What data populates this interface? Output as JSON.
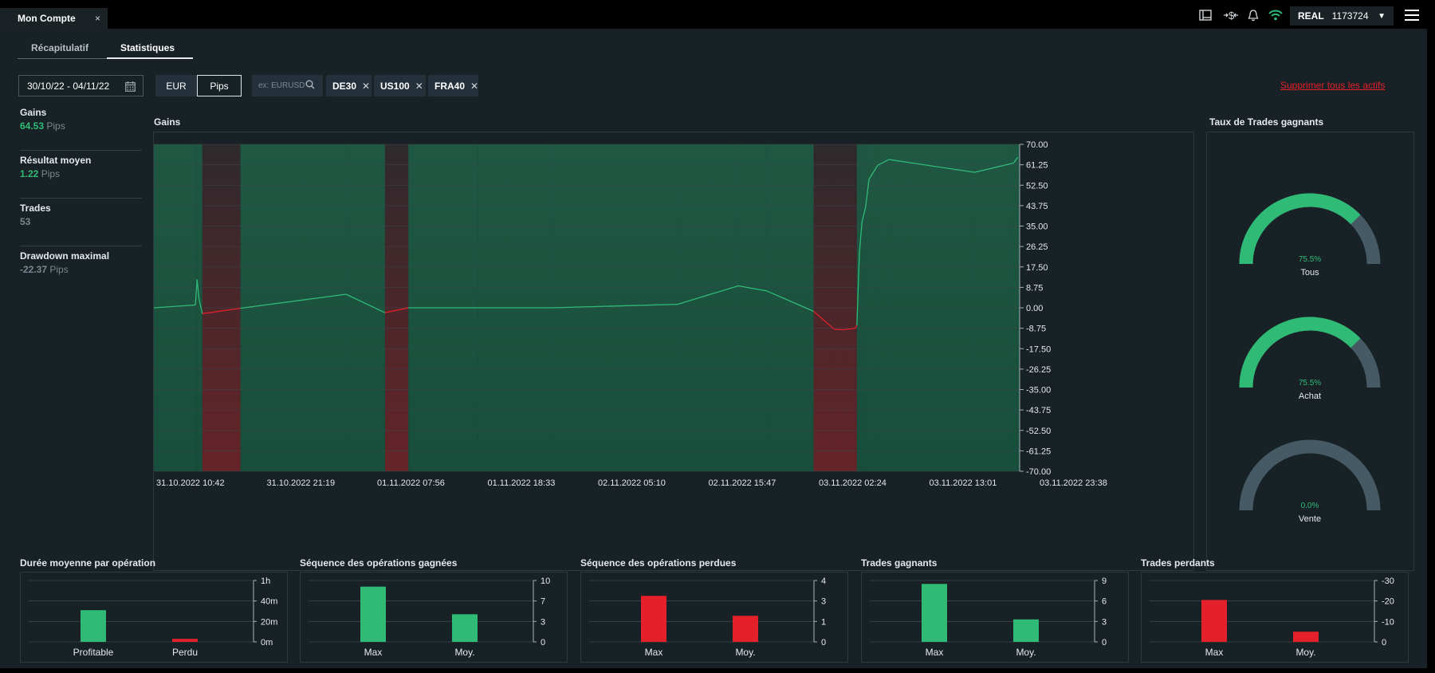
{
  "window": {
    "tab_title": "Mon Compte",
    "close_glyph": "×"
  },
  "topbar": {
    "icons": [
      "layout-icon",
      "dollar-transfer-icon",
      "bell-icon",
      "wifi-icon"
    ],
    "account_type": "REAL",
    "account_number": "1173724"
  },
  "subtabs": [
    {
      "label": "Récapitulatif",
      "active": false
    },
    {
      "label": "Statistiques",
      "active": true
    }
  ],
  "filters": {
    "date_range": "30/10/22 - 04/11/22",
    "currency_toggle": [
      "EUR",
      "Pips"
    ],
    "selected_unit": "Pips",
    "search_placeholder": "ex: EURUSD",
    "instruments": [
      "DE30",
      "US100",
      "FRA40"
    ],
    "remove_all_label": "Supprimer tous les actifs"
  },
  "stats": [
    {
      "label": "Gains",
      "value": "64.53",
      "unit": "Pips",
      "color": "#2fbb76"
    },
    {
      "label": "Résultat moyen",
      "value": "1.22",
      "unit": "Pips",
      "color": "#2fbb76"
    },
    {
      "label": "Trades",
      "value": "53",
      "unit": "",
      "color": "#7b878f"
    },
    {
      "label": "Drawdown maximal",
      "value": "-22.37",
      "unit": "Pips",
      "color": "#7b878f"
    }
  ],
  "sections": {
    "gains_title": "Gains",
    "winrate_title": "Taux de Trades gagnants"
  },
  "colors": {
    "green": "#2fbb76",
    "red": "#e4202a",
    "grey_track": "#455a64",
    "panel": "#182125"
  },
  "chart_data": [
    {
      "type": "area",
      "title": "Gains",
      "ylim": [
        -70,
        70
      ],
      "y_ticks": [
        "70.00",
        "61.25",
        "52.50",
        "43.75",
        "35.00",
        "26.25",
        "17.50",
        "8.75",
        "0.00",
        "-8.75",
        "-17.50",
        "-26.25",
        "-35.00",
        "-43.75",
        "-52.50",
        "-61.25",
        "-70.00"
      ],
      "x_tick_labels": [
        "31.10.2022 10:42",
        "31.10.2022 21:19",
        "01.11.2022 07:56",
        "01.11.2022 18:33",
        "02.11.2022 05:10",
        "02.11.2022 15:47",
        "03.11.2022 02:24",
        "03.11.2022 13:01",
        "03.11.2022 23:38"
      ],
      "x_range": [
        0,
        1000
      ],
      "series": [
        {
          "x": [
            0,
            48,
            50,
            52,
            56,
            100,
            222,
            267,
            294,
            374,
            460,
            605,
            675,
            708,
            762,
            786,
            796,
            810,
            812,
            815,
            818,
            822,
            826,
            836,
            849,
            948,
            993,
            998
          ],
          "values": [
            0,
            1.2,
            12.1,
            4,
            -2.5,
            -0.2,
            5.8,
            -2.1,
            0,
            0,
            0,
            1.5,
            9.4,
            7.2,
            -1.5,
            -9.2,
            -9.4,
            -8.8,
            -7.5,
            24,
            37,
            43,
            55,
            61,
            63.5,
            58,
            62,
            64.5
          ]
        }
      ]
    },
    {
      "type": "bar",
      "title": "Durée moyenne par opération",
      "categories": [
        "Profitable",
        "Perdu"
      ],
      "y_ticks": [
        "1h",
        "40m",
        "20m",
        "0m"
      ],
      "ylim": [
        0,
        60
      ],
      "values": [
        31,
        3
      ],
      "colors": [
        "#2fbb76",
        "#e4202a"
      ]
    },
    {
      "type": "bar",
      "title": "Séquence des opérations gagnées",
      "categories": [
        "Max",
        "Moy."
      ],
      "y_ticks": [
        "10",
        "7",
        "3",
        "0"
      ],
      "ylim": [
        0,
        10
      ],
      "values": [
        9,
        4.5
      ],
      "colors": [
        "#2fbb76",
        "#2fbb76"
      ]
    },
    {
      "type": "bar",
      "title": "Séquence des opérations perdues",
      "categories": [
        "Max",
        "Moy."
      ],
      "y_ticks": [
        "4",
        "3",
        "1",
        "0"
      ],
      "ylim": [
        0,
        4
      ],
      "values": [
        3,
        1.7
      ],
      "colors": [
        "#e4202a",
        "#e4202a"
      ]
    },
    {
      "type": "bar",
      "title": "Trades gagnants",
      "categories": [
        "Max",
        "Moy."
      ],
      "y_ticks": [
        "9",
        "6",
        "3",
        "0"
      ],
      "ylim": [
        0,
        9
      ],
      "values": [
        8.5,
        3.3
      ],
      "colors": [
        "#2fbb76",
        "#2fbb76"
      ]
    },
    {
      "type": "bar",
      "title": "Trades perdants",
      "categories": [
        "Max",
        "Moy."
      ],
      "y_ticks": [
        "-30",
        "-20",
        "-10",
        "0"
      ],
      "ylim": [
        0,
        30
      ],
      "values": [
        20.5,
        5
      ],
      "colors": [
        "#e4202a",
        "#e4202a"
      ]
    }
  ],
  "gauges": [
    {
      "label": "Tous",
      "percent_text": "75.5%",
      "fraction": 0.755
    },
    {
      "label": "Achat",
      "percent_text": "75.5%",
      "fraction": 0.755
    },
    {
      "label": "Vente",
      "percent_text": "0.0%",
      "fraction": 0.0
    }
  ]
}
